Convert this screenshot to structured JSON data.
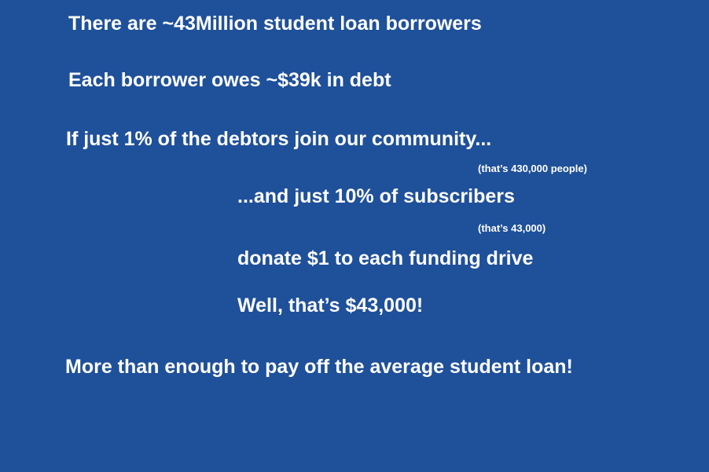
{
  "colors": {
    "background": "#1f509a",
    "text": "#ffffff"
  },
  "slide": {
    "line1": "There are ~43Million student loan borrowers",
    "line2": "Each borrower owes ~$39k in debt",
    "line3": "If just 1% of the debtors join our community...",
    "note1": "(that’s 430,000 people)",
    "line4": "...and just 10% of subscribers",
    "note2": "(that’s 43,000)",
    "line5": "donate $1 to each funding drive",
    "line6": "Well, that’s $43,000!",
    "line7": "More than enough to pay off the average student loan!"
  }
}
